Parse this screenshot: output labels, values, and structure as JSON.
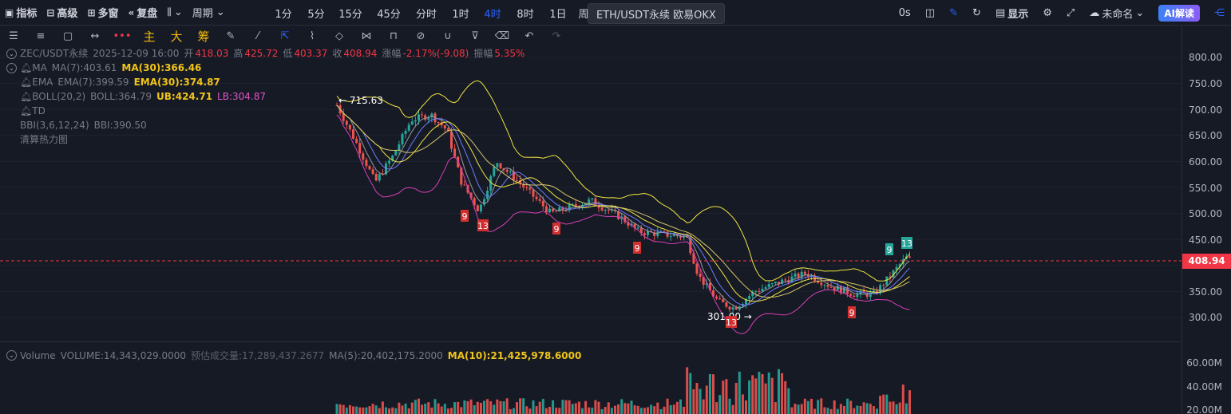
{
  "toolbar": {
    "indicators": "指标",
    "advanced": "高级",
    "multi_window": "多窗",
    "replay": "复盘",
    "period": "周期",
    "intervals": [
      "1分",
      "5分",
      "15分",
      "45分",
      "分时",
      "1时",
      "4时",
      "8时",
      "1日",
      "周"
    ],
    "active_interval": "4时",
    "tooltip": "ETH/USDT永续 欧易OKX",
    "latency": "0s",
    "display": "显示",
    "unnamed": "未命名",
    "ai": "AI解读"
  },
  "drawbar": {
    "main": "主",
    "large": "大",
    "chips": "筹"
  },
  "legend": {
    "symbol": "ZEC/USDT永续",
    "datetime": "2025-12-09 16:00",
    "open_label": "开",
    "open": "418.03",
    "high_label": "高",
    "high": "425.72",
    "low_label": "低",
    "low": "403.37",
    "close_label": "收",
    "close": "408.94",
    "change_label": "涨幅",
    "change": "-2.17%(-9.08)",
    "amp_label": "振幅",
    "amp": "5.35%",
    "ma_name": "MA",
    "ma7": "MA(7):403.61",
    "ma30": "MA(30):366.46",
    "ema_name": "EMA",
    "ema7": "EMA(7):399.59",
    "ema30": "EMA(30):374.87",
    "boll_name": "BOLL(20,2)",
    "boll": "BOLL:364.79",
    "ub": "UB:424.71",
    "lb": "LB:304.87",
    "td": "TD",
    "bbi": "BBI(3,6,12,24)",
    "bbi_val": "BBI:390.50",
    "heatmap": "清算热力图"
  },
  "volume": {
    "name": "Volume",
    "volume": "VOLUME:14,343,029.0000",
    "est": "预估成交量:17,289,437.2677",
    "ma5": "MA(5):20,402,175.2000",
    "ma10": "MA(10):21,425,978.6000"
  },
  "annotations": {
    "high": "← 715.63",
    "low": "301.00 →"
  },
  "td_labels": [
    "9",
    "13",
    "9",
    "9",
    "13",
    "9",
    "9",
    "13"
  ],
  "price_axis": [
    "800.00",
    "750.00",
    "700.00",
    "650.00",
    "600.00",
    "550.00",
    "500.00",
    "450.00",
    "350.00",
    "300.00"
  ],
  "volume_axis": [
    "60.00M",
    "40.00M",
    "20.00M"
  ],
  "last_price": "408.94",
  "colors": {
    "up": "#26a69a",
    "down": "#ef5350",
    "bg": "#161a25",
    "boll_upper": "#f0e442",
    "boll_lower": "#d83fb8"
  }
}
